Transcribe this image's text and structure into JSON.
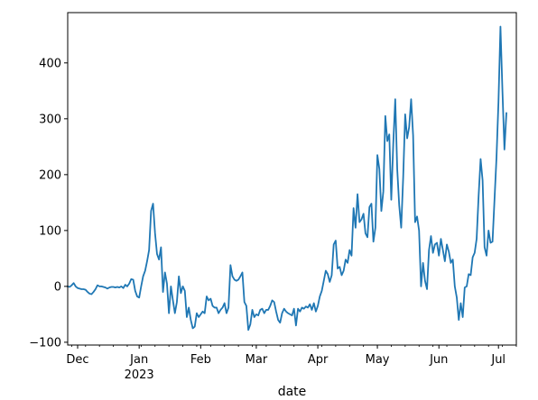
{
  "chart_data": {
    "type": "line",
    "title": "",
    "xlabel": "date",
    "ylabel": "",
    "grid": false,
    "legend": "none",
    "xlim": [
      "2022-11-26",
      "2023-07-10"
    ],
    "ylim": [
      -105,
      490
    ],
    "yticks": [
      -100,
      0,
      100,
      200,
      300,
      400
    ],
    "xticks": [
      {
        "date": "2022-12-01",
        "label": "Dec",
        "sublabel": ""
      },
      {
        "date": "2023-01-01",
        "label": "Jan",
        "sublabel": "2023"
      },
      {
        "date": "2023-02-01",
        "label": "Feb",
        "sublabel": ""
      },
      {
        "date": "2023-03-01",
        "label": "Mar",
        "sublabel": ""
      },
      {
        "date": "2023-04-01",
        "label": "Apr",
        "sublabel": ""
      },
      {
        "date": "2023-05-01",
        "label": "May",
        "sublabel": ""
      },
      {
        "date": "2023-06-01",
        "label": "Jun",
        "sublabel": ""
      },
      {
        "date": "2023-07-01",
        "label": "Jul",
        "sublabel": ""
      }
    ],
    "series": [
      {
        "color": "#1f77b4",
        "points": [
          [
            "2022-11-26",
            0
          ],
          [
            "2022-11-27",
            -1
          ],
          [
            "2022-11-28",
            2
          ],
          [
            "2022-11-29",
            6
          ],
          [
            "2022-11-30",
            0
          ],
          [
            "2022-12-01",
            -3
          ],
          [
            "2022-12-02",
            -4
          ],
          [
            "2022-12-03",
            -5
          ],
          [
            "2022-12-04",
            -5
          ],
          [
            "2022-12-05",
            -6
          ],
          [
            "2022-12-06",
            -10
          ],
          [
            "2022-12-07",
            -13
          ],
          [
            "2022-12-08",
            -14
          ],
          [
            "2022-12-09",
            -10
          ],
          [
            "2022-12-10",
            -5
          ],
          [
            "2022-12-11",
            2
          ],
          [
            "2022-12-12",
            0
          ],
          [
            "2022-12-13",
            0
          ],
          [
            "2022-12-14",
            -1
          ],
          [
            "2022-12-15",
            -2
          ],
          [
            "2022-12-16",
            -4
          ],
          [
            "2022-12-17",
            -2
          ],
          [
            "2022-12-18",
            -1
          ],
          [
            "2022-12-19",
            -1
          ],
          [
            "2022-12-20",
            -2
          ],
          [
            "2022-12-21",
            -1
          ],
          [
            "2022-12-22",
            -2
          ],
          [
            "2022-12-23",
            0
          ],
          [
            "2022-12-24",
            -3
          ],
          [
            "2022-12-25",
            3
          ],
          [
            "2022-12-26",
            0
          ],
          [
            "2022-12-27",
            5
          ],
          [
            "2022-12-28",
            13
          ],
          [
            "2022-12-29",
            12
          ],
          [
            "2022-12-30",
            -8
          ],
          [
            "2022-12-31",
            -18
          ],
          [
            "2023-01-01",
            -20
          ],
          [
            "2023-01-02",
            0
          ],
          [
            "2023-01-03",
            18
          ],
          [
            "2023-01-04",
            28
          ],
          [
            "2023-01-05",
            45
          ],
          [
            "2023-01-06",
            65
          ],
          [
            "2023-01-07",
            135
          ],
          [
            "2023-01-08",
            148
          ],
          [
            "2023-01-09",
            95
          ],
          [
            "2023-01-10",
            58
          ],
          [
            "2023-01-11",
            48
          ],
          [
            "2023-01-12",
            70
          ],
          [
            "2023-01-13",
            -10
          ],
          [
            "2023-01-14",
            25
          ],
          [
            "2023-01-15",
            5
          ],
          [
            "2023-01-16",
            -48
          ],
          [
            "2023-01-17",
            0
          ],
          [
            "2023-01-18",
            -25
          ],
          [
            "2023-01-19",
            -48
          ],
          [
            "2023-01-20",
            -28
          ],
          [
            "2023-01-21",
            18
          ],
          [
            "2023-01-22",
            -12
          ],
          [
            "2023-01-23",
            0
          ],
          [
            "2023-01-24",
            -8
          ],
          [
            "2023-01-25",
            -55
          ],
          [
            "2023-01-26",
            -38
          ],
          [
            "2023-01-27",
            -60
          ],
          [
            "2023-01-28",
            -75
          ],
          [
            "2023-01-29",
            -72
          ],
          [
            "2023-01-30",
            -48
          ],
          [
            "2023-01-31",
            -55
          ],
          [
            "2023-02-01",
            -50
          ],
          [
            "2023-02-02",
            -45
          ],
          [
            "2023-02-03",
            -48
          ],
          [
            "2023-02-04",
            -18
          ],
          [
            "2023-02-05",
            -25
          ],
          [
            "2023-02-06",
            -22
          ],
          [
            "2023-02-07",
            -35
          ],
          [
            "2023-02-08",
            -38
          ],
          [
            "2023-02-09",
            -38
          ],
          [
            "2023-02-10",
            -48
          ],
          [
            "2023-02-11",
            -42
          ],
          [
            "2023-02-12",
            -38
          ],
          [
            "2023-02-13",
            -30
          ],
          [
            "2023-02-14",
            -48
          ],
          [
            "2023-02-15",
            -38
          ],
          [
            "2023-02-16",
            38
          ],
          [
            "2023-02-17",
            18
          ],
          [
            "2023-02-18",
            12
          ],
          [
            "2023-02-19",
            10
          ],
          [
            "2023-02-20",
            12
          ],
          [
            "2023-02-21",
            18
          ],
          [
            "2023-02-22",
            25
          ],
          [
            "2023-02-23",
            -28
          ],
          [
            "2023-02-24",
            -35
          ],
          [
            "2023-02-25",
            -78
          ],
          [
            "2023-02-26",
            -68
          ],
          [
            "2023-02-27",
            -42
          ],
          [
            "2023-02-28",
            -55
          ],
          [
            "2023-03-01",
            -50
          ],
          [
            "2023-03-02",
            -52
          ],
          [
            "2023-03-03",
            -42
          ],
          [
            "2023-03-04",
            -40
          ],
          [
            "2023-03-05",
            -48
          ],
          [
            "2023-03-06",
            -42
          ],
          [
            "2023-03-07",
            -42
          ],
          [
            "2023-03-08",
            -35
          ],
          [
            "2023-03-09",
            -25
          ],
          [
            "2023-03-10",
            -28
          ],
          [
            "2023-03-11",
            -45
          ],
          [
            "2023-03-12",
            -60
          ],
          [
            "2023-03-13",
            -65
          ],
          [
            "2023-03-14",
            -48
          ],
          [
            "2023-03-15",
            -40
          ],
          [
            "2023-03-16",
            -45
          ],
          [
            "2023-03-17",
            -48
          ],
          [
            "2023-03-18",
            -50
          ],
          [
            "2023-03-19",
            -52
          ],
          [
            "2023-03-20",
            -40
          ],
          [
            "2023-03-21",
            -70
          ],
          [
            "2023-03-22",
            -40
          ],
          [
            "2023-03-23",
            -45
          ],
          [
            "2023-03-24",
            -38
          ],
          [
            "2023-03-25",
            -40
          ],
          [
            "2023-03-26",
            -36
          ],
          [
            "2023-03-27",
            -38
          ],
          [
            "2023-03-28",
            -32
          ],
          [
            "2023-03-29",
            -42
          ],
          [
            "2023-03-30",
            -30
          ],
          [
            "2023-03-31",
            -45
          ],
          [
            "2023-04-01",
            -35
          ],
          [
            "2023-04-02",
            -18
          ],
          [
            "2023-04-03",
            -8
          ],
          [
            "2023-04-04",
            10
          ],
          [
            "2023-04-05",
            28
          ],
          [
            "2023-04-06",
            22
          ],
          [
            "2023-04-07",
            8
          ],
          [
            "2023-04-08",
            20
          ],
          [
            "2023-04-09",
            75
          ],
          [
            "2023-04-10",
            82
          ],
          [
            "2023-04-11",
            32
          ],
          [
            "2023-04-12",
            35
          ],
          [
            "2023-04-13",
            20
          ],
          [
            "2023-04-14",
            28
          ],
          [
            "2023-04-15",
            48
          ],
          [
            "2023-04-16",
            42
          ],
          [
            "2023-04-17",
            65
          ],
          [
            "2023-04-18",
            55
          ],
          [
            "2023-04-19",
            140
          ],
          [
            "2023-04-20",
            105
          ],
          [
            "2023-04-21",
            165
          ],
          [
            "2023-04-22",
            115
          ],
          [
            "2023-04-23",
            120
          ],
          [
            "2023-04-24",
            130
          ],
          [
            "2023-04-25",
            95
          ],
          [
            "2023-04-26",
            88
          ],
          [
            "2023-04-27",
            142
          ],
          [
            "2023-04-28",
            148
          ],
          [
            "2023-04-29",
            80
          ],
          [
            "2023-04-30",
            105
          ],
          [
            "2023-05-01",
            235
          ],
          [
            "2023-05-02",
            210
          ],
          [
            "2023-05-03",
            135
          ],
          [
            "2023-05-04",
            170
          ],
          [
            "2023-05-05",
            305
          ],
          [
            "2023-05-06",
            260
          ],
          [
            "2023-05-07",
            272
          ],
          [
            "2023-05-08",
            155
          ],
          [
            "2023-05-09",
            255
          ],
          [
            "2023-05-10",
            335
          ],
          [
            "2023-05-11",
            210
          ],
          [
            "2023-05-12",
            145
          ],
          [
            "2023-05-13",
            105
          ],
          [
            "2023-05-14",
            195
          ],
          [
            "2023-05-15",
            308
          ],
          [
            "2023-05-16",
            265
          ],
          [
            "2023-05-17",
            285
          ],
          [
            "2023-05-18",
            335
          ],
          [
            "2023-05-19",
            270
          ],
          [
            "2023-05-20",
            115
          ],
          [
            "2023-05-21",
            125
          ],
          [
            "2023-05-22",
            100
          ],
          [
            "2023-05-23",
            0
          ],
          [
            "2023-05-24",
            42
          ],
          [
            "2023-05-25",
            10
          ],
          [
            "2023-05-26",
            -5
          ],
          [
            "2023-05-27",
            65
          ],
          [
            "2023-05-28",
            90
          ],
          [
            "2023-05-29",
            60
          ],
          [
            "2023-05-30",
            75
          ],
          [
            "2023-05-31",
            78
          ],
          [
            "2023-06-01",
            55
          ],
          [
            "2023-06-02",
            85
          ],
          [
            "2023-06-03",
            65
          ],
          [
            "2023-06-04",
            45
          ],
          [
            "2023-06-05",
            75
          ],
          [
            "2023-06-06",
            62
          ],
          [
            "2023-06-07",
            42
          ],
          [
            "2023-06-08",
            48
          ],
          [
            "2023-06-09",
            0
          ],
          [
            "2023-06-10",
            -20
          ],
          [
            "2023-06-11",
            -60
          ],
          [
            "2023-06-12",
            -30
          ],
          [
            "2023-06-13",
            -55
          ],
          [
            "2023-06-14",
            -2
          ],
          [
            "2023-06-15",
            0
          ],
          [
            "2023-06-16",
            22
          ],
          [
            "2023-06-17",
            20
          ],
          [
            "2023-06-18",
            52
          ],
          [
            "2023-06-19",
            60
          ],
          [
            "2023-06-20",
            85
          ],
          [
            "2023-06-21",
            162
          ],
          [
            "2023-06-22",
            228
          ],
          [
            "2023-06-23",
            190
          ],
          [
            "2023-06-24",
            70
          ],
          [
            "2023-06-25",
            55
          ],
          [
            "2023-06-26",
            100
          ],
          [
            "2023-06-27",
            78
          ],
          [
            "2023-06-28",
            80
          ],
          [
            "2023-06-29",
            155
          ],
          [
            "2023-06-30",
            230
          ],
          [
            "2023-07-01",
            330
          ],
          [
            "2023-07-02",
            465
          ],
          [
            "2023-07-03",
            350
          ],
          [
            "2023-07-04",
            245
          ],
          [
            "2023-07-05",
            310
          ]
        ]
      }
    ]
  }
}
